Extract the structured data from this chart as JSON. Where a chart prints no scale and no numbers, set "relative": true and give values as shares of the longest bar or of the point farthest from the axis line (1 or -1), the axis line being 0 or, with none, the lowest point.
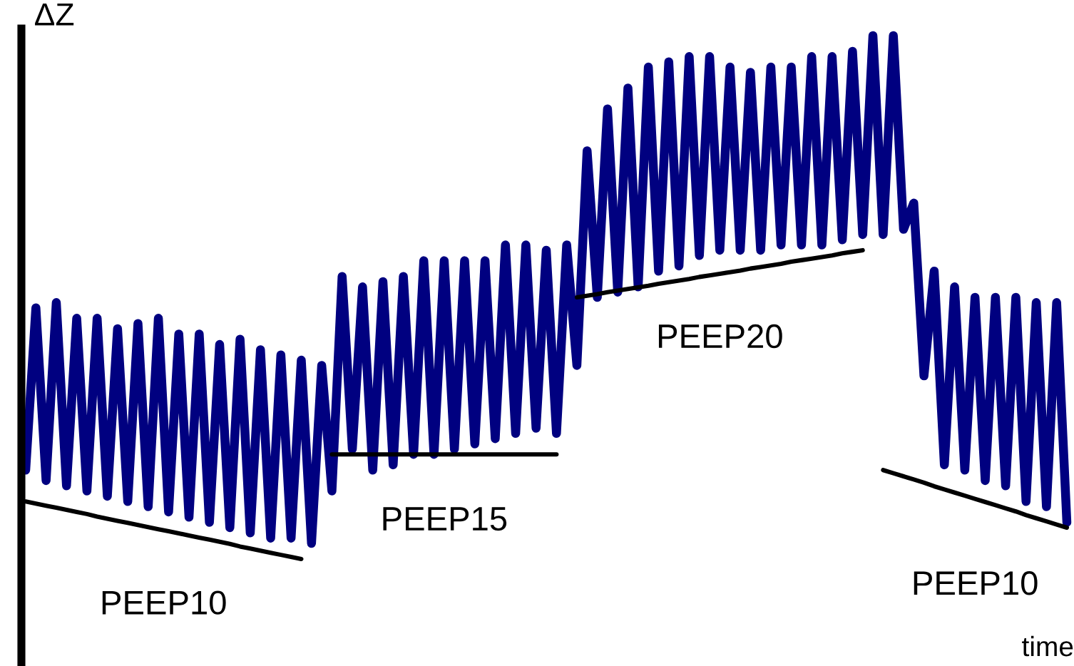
{
  "chart_data": {
    "type": "line",
    "relative": true,
    "ylabel": "ΔZ",
    "xlabel": "time",
    "categories": [
      null,
      null,
      null,
      null,
      null,
      null,
      null,
      null,
      null,
      null,
      null,
      null,
      null,
      null,
      null,
      null,
      null,
      null,
      null,
      null,
      null,
      null,
      null,
      null,
      null,
      null,
      null,
      null,
      null,
      null,
      null,
      null,
      null,
      null,
      null,
      null,
      null,
      null,
      null,
      null,
      null,
      null,
      null,
      null,
      null,
      null,
      null,
      null,
      null,
      null,
      null,
      null,
      null,
      null,
      null,
      null,
      null,
      null,
      null,
      null,
      null,
      null,
      null,
      null,
      null,
      null,
      null,
      null,
      null,
      null,
      null,
      null,
      null,
      null,
      null,
      null,
      null,
      null,
      null,
      null,
      null,
      null,
      null,
      null,
      null,
      null,
      null,
      null,
      null,
      null,
      null,
      null,
      null,
      null,
      null,
      null,
      null,
      null,
      null,
      null,
      null,
      null,
      null
    ],
    "series": [
      {
        "color": "#000080",
        "values": [
          0.17,
          0.48,
          0.15,
          0.49,
          0.14,
          0.46,
          0.13,
          0.46,
          0.12,
          0.44,
          0.11,
          0.45,
          0.1,
          0.46,
          0.09,
          0.43,
          0.08,
          0.43,
          0.07,
          0.41,
          0.06,
          0.42,
          0.05,
          0.4,
          0.04,
          0.39,
          0.04,
          0.38,
          0.03,
          0.37,
          0.13,
          0.54,
          0.21,
          0.52,
          0.17,
          0.53,
          0.18,
          0.54,
          0.2,
          0.57,
          0.2,
          0.57,
          0.21,
          0.57,
          0.22,
          0.57,
          0.23,
          0.6,
          0.24,
          0.6,
          0.25,
          0.59,
          0.24,
          0.6,
          0.37,
          0.78,
          0.5,
          0.86,
          0.51,
          0.9,
          0.52,
          0.94,
          0.55,
          0.95,
          0.56,
          0.96,
          0.58,
          0.96,
          0.59,
          0.94,
          0.59,
          0.93,
          0.59,
          0.94,
          0.6,
          0.94,
          0.6,
          0.96,
          0.6,
          0.96,
          0.61,
          0.97,
          0.62,
          1,
          0.62,
          1,
          0.63,
          0.68,
          0.35,
          0.55,
          0.18,
          0.52,
          0.17,
          0.5,
          0.15,
          0.5,
          0.14,
          0.5,
          0.11,
          0.49,
          0.1,
          0.49,
          0.07
        ]
      },
      {
        "type": "line",
        "color": "#000000",
        "values": [
          0.11,
          0.106,
          0.102,
          0.098,
          0.094,
          0.09,
          0.086,
          0.081,
          0.077,
          0.073,
          0.069,
          0.065,
          0.061,
          0.057,
          0.053,
          0.049,
          0.045,
          0.041,
          0.037,
          0.033,
          0.029,
          0.024,
          0.02,
          0.016,
          0.012,
          0.008,
          0.004,
          0.0,
          null,
          null,
          null,
          null,
          null,
          null,
          null,
          null,
          null,
          null,
          null,
          null,
          null,
          null,
          null,
          null,
          null,
          null,
          null,
          null,
          null,
          null,
          null,
          null,
          null,
          null,
          null,
          null,
          null,
          null,
          null,
          null,
          null,
          null,
          null,
          null,
          null,
          null,
          null,
          null,
          null,
          null,
          null,
          null,
          null,
          null,
          null,
          null,
          null,
          null,
          null,
          null,
          null,
          null,
          null,
          null,
          null,
          null,
          null,
          null,
          null,
          null,
          null,
          null,
          null,
          null,
          null,
          null,
          null,
          null,
          null,
          null,
          null,
          null,
          null
        ]
      },
      {
        "type": "line",
        "color": "#000000",
        "values": [
          null,
          null,
          null,
          null,
          null,
          null,
          null,
          null,
          null,
          null,
          null,
          null,
          null,
          null,
          null,
          null,
          null,
          null,
          null,
          null,
          null,
          null,
          null,
          null,
          null,
          null,
          null,
          null,
          null,
          null,
          0.2,
          0.2,
          0.2,
          0.2,
          0.2,
          0.2,
          0.2,
          0.2,
          0.2,
          0.2,
          0.2,
          0.2,
          0.2,
          0.2,
          0.2,
          0.2,
          0.2,
          0.2,
          0.2,
          0.2,
          0.2,
          0.2,
          0.2,
          null,
          null,
          null,
          null,
          null,
          null,
          null,
          null,
          null,
          null,
          null,
          null,
          null,
          null,
          null,
          null,
          null,
          null,
          null,
          null,
          null,
          null,
          null,
          null,
          null,
          null,
          null,
          null,
          null,
          null,
          null,
          null,
          null,
          null,
          null,
          null,
          null,
          null,
          null,
          null,
          null,
          null,
          null,
          null,
          null,
          null,
          null,
          null,
          null,
          null
        ]
      },
      {
        "type": "line",
        "color": "#000000",
        "values": [
          null,
          null,
          null,
          null,
          null,
          null,
          null,
          null,
          null,
          null,
          null,
          null,
          null,
          null,
          null,
          null,
          null,
          null,
          null,
          null,
          null,
          null,
          null,
          null,
          null,
          null,
          null,
          null,
          null,
          null,
          null,
          null,
          null,
          null,
          null,
          null,
          null,
          null,
          null,
          null,
          null,
          null,
          null,
          null,
          null,
          null,
          null,
          null,
          null,
          null,
          null,
          null,
          null,
          null,
          0.5,
          0.503,
          0.506,
          0.51,
          0.513,
          0.516,
          0.519,
          0.522,
          0.526,
          0.529,
          0.532,
          0.535,
          0.539,
          0.542,
          0.545,
          0.548,
          0.551,
          0.555,
          0.558,
          0.561,
          0.564,
          0.568,
          0.571,
          0.574,
          0.577,
          0.58,
          0.584,
          0.587,
          0.59,
          null,
          null,
          null,
          null,
          null,
          null,
          null,
          null,
          null,
          null,
          null,
          null,
          null,
          null,
          null,
          null,
          null,
          null,
          null,
          null
        ]
      },
      {
        "type": "line",
        "color": "#000000",
        "values": [
          null,
          null,
          null,
          null,
          null,
          null,
          null,
          null,
          null,
          null,
          null,
          null,
          null,
          null,
          null,
          null,
          null,
          null,
          null,
          null,
          null,
          null,
          null,
          null,
          null,
          null,
          null,
          null,
          null,
          null,
          null,
          null,
          null,
          null,
          null,
          null,
          null,
          null,
          null,
          null,
          null,
          null,
          null,
          null,
          null,
          null,
          null,
          null,
          null,
          null,
          null,
          null,
          null,
          null,
          null,
          null,
          null,
          null,
          null,
          null,
          null,
          null,
          null,
          null,
          null,
          null,
          null,
          null,
          null,
          null,
          null,
          null,
          null,
          null,
          null,
          null,
          null,
          null,
          null,
          null,
          null,
          null,
          null,
          null,
          0.17,
          0.164,
          0.158,
          0.152,
          0.146,
          0.139,
          0.133,
          0.127,
          0.121,
          0.115,
          0.109,
          0.103,
          0.097,
          0.091,
          0.084,
          0.078,
          0.072,
          0.066,
          0.06
        ]
      }
    ],
    "annotations": [
      "PEEP10",
      "PEEP15",
      "PEEP20",
      "PEEP10"
    ]
  }
}
